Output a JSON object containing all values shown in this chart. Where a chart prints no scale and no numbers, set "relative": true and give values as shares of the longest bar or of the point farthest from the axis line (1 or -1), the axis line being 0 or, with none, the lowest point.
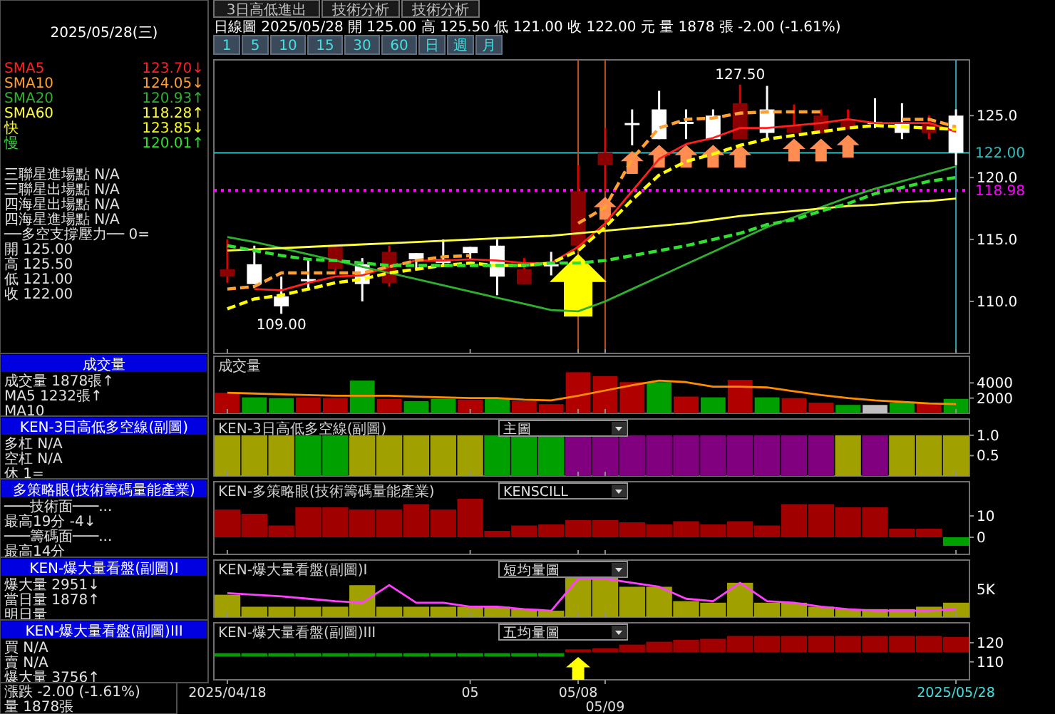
{
  "chart_data": [
    {
      "type": "other",
      "annotations": [
        "3日高低進出",
        "技術分析",
        "技術分析"
      ]
    },
    {
      "type": "other",
      "annotations": [
        "1 5 10 15 30 60 日 週 月"
      ]
    },
    {
      "type": "other",
      "title": "2025/05/28(三)",
      "annotations": [
        "三聯星進場點 N/A",
        "三聯星出場點 N/A",
        "四海星出場點 N/A",
        "四海星進場點 N/A",
        "──多空支撐壓力── 0=",
        "開 125.00",
        "高 125.50",
        "低 121.00",
        "收 122.00"
      ]
    },
    {
      "type": "candlestick",
      "title": "日線圖 2025/05/28 開 125.00 高 125.50 低 121.00 收 122.00 元 量 1878 張 -2.00 (-1.61%)",
      "categories": [
        "2025/04/18",
        null,
        null,
        null,
        null,
        null,
        null,
        null,
        null,
        "05",
        null,
        null,
        null,
        "05/08",
        "05/09",
        null,
        null,
        null,
        null,
        null,
        null,
        null,
        null,
        null,
        null,
        null,
        null,
        "2025/05/28"
      ],
      "ohlc": [
        [
          112.0,
          115.0,
          111.5,
          112.6
        ],
        [
          113.0,
          114.5,
          111.4,
          111.4
        ],
        [
          110.4,
          112.0,
          109.0,
          109.6
        ],
        [
          111.8,
          113.4,
          110.9,
          111.7
        ],
        [
          112.6,
          114.5,
          112.2,
          114.4
        ],
        [
          113.0,
          113.5,
          110.0,
          111.4
        ],
        [
          111.5,
          114.5,
          111.2,
          114.0
        ],
        [
          113.9,
          113.9,
          112.5,
          113.4
        ],
        [
          113.4,
          115.0,
          112.8,
          113.1
        ],
        [
          114.4,
          114.4,
          113.4,
          113.9
        ],
        [
          114.5,
          115.0,
          110.5,
          112.0
        ],
        [
          111.4,
          113.5,
          111.4,
          112.6
        ],
        [
          113.0,
          114.0,
          112.1,
          112.9
        ],
        [
          114.5,
          121.0,
          114.3,
          118.9
        ],
        [
          121.0,
          124.0,
          118.9,
          122.0
        ],
        [
          124.4,
          125.5,
          122.6,
          124.3
        ],
        [
          125.5,
          127.0,
          123.1,
          123.1
        ],
        [
          124.5,
          125.5,
          123.1,
          124.4
        ],
        [
          125.0,
          125.5,
          123.1,
          123.1
        ],
        [
          123.1,
          127.5,
          123.1,
          126.0
        ],
        [
          125.5,
          127.4,
          123.1,
          123.6
        ],
        [
          123.6,
          125.9,
          123.6,
          124.2
        ],
        [
          123.6,
          125.5,
          123.6,
          125.0
        ],
        [
          123.9,
          125.5,
          123.9,
          124.7
        ],
        [
          124.5,
          126.4,
          124.0,
          124.4
        ],
        [
          124.4,
          126.0,
          123.1,
          123.6
        ],
        [
          123.6,
          125.0,
          123.1,
          124.4
        ],
        [
          125.0,
          125.5,
          121.0,
          122.0
        ]
      ],
      "colors": [
        "#8b0000",
        "#ffffff",
        "#ffffff",
        "#ffffff",
        "#8b0000",
        "#ffffff",
        "#8b0000",
        "#ffffff",
        "#ffffff",
        "#ffffff",
        "#ffffff",
        "#8b0000",
        "#ffffff",
        "#8b0000",
        "#8b0000",
        "#ffffff",
        "#ffffff",
        "#ffffff",
        "#ffffff",
        "#8b0000",
        "#ffffff",
        "#8b0000",
        "#8b0000",
        "#8b0000",
        "#ffffff",
        "#ffffff",
        "#8b0000",
        "#ffffff"
      ],
      "series": [
        {
          "name": "SMA5",
          "type": "line",
          "color": "#ff2020",
          "values": [
            null,
            111.0,
            110.9,
            111.5,
            112.0,
            112.1,
            112.8,
            113.3,
            113.3,
            113.4,
            113.3,
            113.1,
            113.1,
            114.4,
            116.3,
            118.9,
            121.5,
            122.7,
            123.2,
            124.0,
            124.0,
            124.2,
            124.4,
            124.7,
            124.4,
            124.4,
            124.4,
            123.7
          ]
        },
        {
          "name": "SMA10",
          "type": "line",
          "color": "#ffa030",
          "line_style": "dashed",
          "values": [
            111.0,
            111.2,
            112.3,
            112.3,
            112.3,
            112.3,
            112.8,
            113.3,
            113.6,
            113.7,
            null,
            null,
            null,
            116.3,
            117.6,
            121.5,
            124.0,
            124.7,
            124.8,
            125.2,
            125.3,
            125.3,
            125.3,
            null,
            null,
            124.7,
            124.7,
            124.1
          ]
        },
        {
          "name": "SMA20",
          "type": "line",
          "color": "#30b030",
          "values": [
            115.2,
            114.8,
            114.3,
            113.8,
            113.3,
            112.8,
            112.3,
            111.8,
            111.3,
            110.8,
            110.3,
            109.8,
            109.3,
            109.2,
            110.0,
            111.0,
            112.0,
            113.0,
            114.0,
            115.0,
            116.0,
            116.8,
            117.6,
            118.4,
            119.1,
            119.7,
            120.3,
            120.9
          ]
        },
        {
          "name": "SMA60",
          "type": "line",
          "color": "#ffff40",
          "values": [
            114.1,
            114.2,
            114.3,
            114.4,
            114.5,
            114.6,
            114.7,
            114.8,
            114.9,
            115.0,
            115.1,
            115.2,
            115.3,
            115.5,
            115.7,
            115.9,
            116.1,
            116.3,
            116.6,
            116.9,
            117.1,
            117.3,
            117.5,
            117.7,
            117.8,
            118.0,
            118.1,
            118.3
          ]
        },
        {
          "name": "快",
          "type": "line",
          "color": "#ffff00",
          "line_style": "dashed",
          "values": [
            109.4,
            110.2,
            110.5,
            111.0,
            111.5,
            111.8,
            112.3,
            112.6,
            112.9,
            113.1,
            112.9,
            112.9,
            113.1,
            114.1,
            116.0,
            118.2,
            120.2,
            121.3,
            121.9,
            122.6,
            123.1,
            123.4,
            123.7,
            124.0,
            124.2,
            124.1,
            124.0,
            123.9
          ]
        },
        {
          "name": "慢",
          "type": "line",
          "color": "#30e030",
          "line_style": "dashed",
          "values": [
            114.5,
            114.1,
            113.7,
            113.4,
            113.3,
            113.1,
            112.9,
            112.9,
            112.9,
            112.9,
            112.9,
            112.9,
            113.1,
            113.1,
            113.3,
            113.7,
            114.1,
            114.5,
            115.0,
            115.5,
            116.2,
            116.6,
            117.3,
            117.9,
            118.7,
            119.2,
            119.7,
            120.0
          ]
        }
      ],
      "ylim": [
        105.8,
        129.5
      ],
      "yticks": [
        {
          "value": 110,
          "label": "110.0"
        },
        {
          "value": 115,
          "label": "115.0"
        },
        {
          "value": 120,
          "label": "120.0"
        },
        {
          "value": 125,
          "label": "125.0"
        }
      ],
      "ref_lines": [
        {
          "axis": "y",
          "value": 122,
          "label": "122.00",
          "color": "#30c0c0"
        },
        {
          "axis": "y",
          "value": 118.98,
          "label": "118.98",
          "color": "#ff00ff",
          "line_style": "dotted"
        },
        {
          "axis": "x",
          "value": "05/08",
          "color": "#c05020"
        },
        {
          "axis": "x",
          "value": "05/09",
          "color": "#c05020"
        },
        {
          "axis": "x",
          "value": "2025/05/28",
          "color": "#30a0b0"
        }
      ],
      "annotations": [
        {
          "text": "127.50",
          "y": 127.5
        },
        {
          "text": "109.00",
          "y": 109.0
        },
        "123.70↓",
        "124.05↓",
        "120.93↑",
        "118.28↑",
        "123.85↓",
        "120.01↑"
      ],
      "legend": "left",
      "tick_labels": "y"
    },
    {
      "type": "other",
      "title": "成交量",
      "annotations": [
        "成交量 1878張↑",
        "MA5 1232張↑",
        "MA10"
      ]
    },
    {
      "type": "bar",
      "title": "成交量",
      "categories": [
        "2025/04/18",
        null,
        null,
        null,
        null,
        null,
        null,
        null,
        null,
        "05",
        null,
        null,
        null,
        "05/08",
        "05/09",
        null,
        null,
        null,
        null,
        null,
        null,
        null,
        null,
        null,
        null,
        null,
        null,
        "2025/05/28"
      ],
      "series": [
        {
          "type": "bar",
          "colors": [
            "#b00000",
            "#00a000",
            "#00a000",
            "#b00000",
            "#b00000",
            "#00a000",
            "#b00000",
            "#00a000",
            "#00a000",
            "#b00000",
            "#00a000",
            "#b00000",
            "#b00000",
            "#b00000",
            "#b00000",
            "#b00000",
            "#00a000",
            "#b00000",
            "#00a000",
            "#b00000",
            "#00a000",
            "#b00000",
            "#b00000",
            "#00a000",
            "#c0c0c0",
            "#00a000",
            "#b00000",
            "#00a000"
          ],
          "values": [
            2700,
            2100,
            2000,
            2100,
            2000,
            4300,
            1900,
            1600,
            1900,
            1800,
            2000,
            1600,
            1200,
            5400,
            4900,
            4100,
            4100,
            2200,
            2100,
            4400,
            2100,
            2000,
            1400,
            1100,
            1100,
            1400,
            1300,
            1900
          ]
        },
        {
          "type": "line",
          "color": "#ff8c00",
          "values": [
            2700,
            2600,
            2500,
            2400,
            2300,
            2300,
            2300,
            2200,
            2100,
            2000,
            2000,
            1800,
            1700,
            2300,
            3000,
            3700,
            4300,
            4100,
            3500,
            3500,
            3400,
            2900,
            2400,
            2000,
            1700,
            1500,
            1300,
            1200
          ]
        }
      ],
      "ylim": [
        0,
        7500
      ],
      "yticks": [
        2000,
        4000
      ],
      "tick_labels": "y"
    },
    {
      "type": "other",
      "title": "KEN-3日高低多空線(副圖)",
      "annotations": [
        "多杠 N/A",
        "空杠 N/A",
        "休 1="
      ]
    },
    {
      "type": "bar",
      "title": "KEN-3日高低多空線(副圖)",
      "subtitle": "主圖",
      "categories": [
        "2025/04/18",
        null,
        null,
        null,
        null,
        null,
        null,
        null,
        null,
        "05",
        null,
        null,
        null,
        "05/08",
        "05/09",
        null,
        null,
        null,
        null,
        null,
        null,
        null,
        null,
        null,
        null,
        null,
        null,
        "2025/05/28"
      ],
      "values": [
        1,
        1,
        1,
        1,
        1,
        1,
        1,
        1,
        1,
        1,
        1,
        1,
        1,
        1,
        1,
        1,
        1,
        1,
        1,
        1,
        1,
        1,
        1,
        1,
        1,
        1,
        1,
        1
      ],
      "colors": [
        "#a0a000",
        "#a0a000",
        "#a0a000",
        "#00a000",
        "#00a000",
        "#a0a000",
        "#a0a000",
        "#a0a000",
        "#a0a000",
        "#a0a000",
        "#00a000",
        "#00a000",
        "#00a000",
        "#800080",
        "#800080",
        "#800080",
        "#800080",
        "#800080",
        "#800080",
        "#800080",
        "#800080",
        "#800080",
        "#800080",
        "#a0a000",
        "#800080",
        "#a0a000",
        "#a0a000",
        "#a0a000"
      ],
      "ylim": [
        0,
        1.4
      ],
      "yticks": [
        {
          "value": 1,
          "label": "1.0"
        },
        0.5
      ],
      "tick_labels": "y"
    },
    {
      "type": "other",
      "title": "多策略眼(技術籌碼量能產業)",
      "annotations": [
        "───技術面───...",
        "最高19分 -4↓",
        "───籌碼面───...",
        "最高14分"
      ]
    },
    {
      "type": "bar",
      "title": "KEN-多策略眼(技術籌碼量能產業)",
      "subtitle": "KENSCILL",
      "categories": [
        "2025/04/18",
        null,
        null,
        null,
        null,
        null,
        null,
        null,
        null,
        "05",
        null,
        null,
        null,
        "05/08",
        "05/09",
        null,
        null,
        null,
        null,
        null,
        null,
        null,
        null,
        null,
        null,
        null,
        null,
        "2025/05/28"
      ],
      "values": [
        13,
        11,
        5.5,
        14,
        14,
        13,
        13,
        15.5,
        13,
        18,
        3,
        5.5,
        6,
        8,
        8,
        7,
        6,
        7.5,
        6,
        7.5,
        5.5,
        15.5,
        15.5,
        14,
        14,
        4,
        4,
        -4
      ],
      "colors": [
        "#a00000",
        "#a00000",
        "#a00000",
        "#a00000",
        "#a00000",
        "#a00000",
        "#a00000",
        "#a00000",
        "#a00000",
        "#a00000",
        "#a00000",
        "#a00000",
        "#a00000",
        "#a00000",
        "#a00000",
        "#a00000",
        "#a00000",
        "#a00000",
        "#a00000",
        "#a00000",
        "#a00000",
        "#a00000",
        "#a00000",
        "#a00000",
        "#a00000",
        "#a00000",
        "#a00000",
        "#00a000"
      ],
      "ylim": [
        -8,
        26
      ],
      "yticks": [
        0,
        10
      ],
      "tick_labels": "y"
    },
    {
      "type": "other",
      "title": "KEN-爆大量看盤(副圖)I",
      "annotations": [
        "爆大量 2951↓",
        "當日量 1878↑",
        "明日量"
      ]
    },
    {
      "type": "bar",
      "title": "KEN-爆大量看盤(副圖)I",
      "subtitle": "短均量圖",
      "relative": true,
      "categories": [
        "2025/04/18",
        null,
        null,
        null,
        null,
        null,
        null,
        null,
        null,
        "05",
        null,
        null,
        null,
        "05/08",
        "05/09",
        null,
        null,
        null,
        null,
        null,
        null,
        null,
        null,
        null,
        null,
        null,
        null,
        "2025/05/28"
      ],
      "series": [
        {
          "type": "bar",
          "color": "#a0a000",
          "values": [
            0.56,
            0.26,
            0.26,
            0.26,
            0.26,
            0.8,
            0.26,
            0.26,
            0.26,
            0.26,
            0.26,
            0.2,
            0.16,
            1,
            1,
            0.76,
            0.76,
            0.4,
            0.36,
            0.86,
            0.36,
            0.36,
            0.26,
            0.2,
            0.2,
            0.2,
            0.26,
            0.36
          ]
        },
        {
          "type": "line",
          "color": "#ff40ff",
          "values": [
            0.6,
            0.56,
            0.52,
            0.46,
            0.4,
            0.36,
            0.8,
            0.36,
            0.36,
            0.26,
            0.26,
            0.2,
            0.16,
            0.96,
            0.96,
            0.86,
            0.76,
            0.46,
            0.4,
            0.86,
            0.4,
            0.36,
            0.26,
            0.2,
            0.16,
            0.16,
            0.16,
            0.2
          ]
        }
      ],
      "annotations": [
        "5K"
      ],
      "tick_labels": "y"
    },
    {
      "type": "other",
      "title": "KEN-爆大量看盤(副圖)III",
      "annotations": [
        "買 N/A",
        "賣 N/A",
        "爆大量 3756↑"
      ]
    },
    {
      "type": "bar",
      "title": "KEN-爆大量看盤(副圖)III",
      "subtitle": "五均量圖",
      "categories": [
        "2025/04/18",
        null,
        null,
        null,
        null,
        null,
        null,
        null,
        null,
        "05",
        null,
        null,
        null,
        "05/08",
        "05/09",
        null,
        null,
        null,
        null,
        null,
        null,
        null,
        null,
        null,
        null,
        null,
        null,
        "2025/05/28"
      ],
      "base": [
        112.8,
        112.8,
        112.8,
        112.8,
        112.8,
        112.8,
        112.8,
        112.8,
        112.8,
        112.8,
        112.8,
        112.8,
        112.8,
        115,
        115,
        115,
        115,
        115,
        115,
        115,
        115,
        115,
        115,
        115,
        115,
        115,
        115,
        115
      ],
      "values": [
        1.7,
        1.7,
        1.7,
        1.7,
        1.7,
        1.7,
        1.7,
        1.7,
        1.7,
        1.7,
        1.7,
        1.7,
        1.7,
        1.5,
        2,
        4,
        5.5,
        6.5,
        7,
        8.5,
        8.5,
        8.5,
        8.5,
        8.5,
        8.5,
        8.5,
        8.5,
        8
      ],
      "colors": [
        "#00a000",
        "#00a000",
        "#00a000",
        "#00a000",
        "#00a000",
        "#00a000",
        "#00a000",
        "#00a000",
        "#00a000",
        "#00a000",
        "#00a000",
        "#00a000",
        "#00a000",
        "#a00000",
        "#a00000",
        "#a00000",
        "#a00000",
        "#a00000",
        "#a00000",
        "#a00000",
        "#a00000",
        "#a00000",
        "#a00000",
        "#a00000",
        "#a00000",
        "#a00000",
        "#a00000",
        "#a00000"
      ],
      "ylim": [
        100.6,
        130.4
      ],
      "yticks": [
        110,
        120
      ]
    },
    {
      "type": "other",
      "annotations": [
        "漲跌 -2.00 (-1.61%)",
        "量 1878張"
      ]
    }
  ]
}
